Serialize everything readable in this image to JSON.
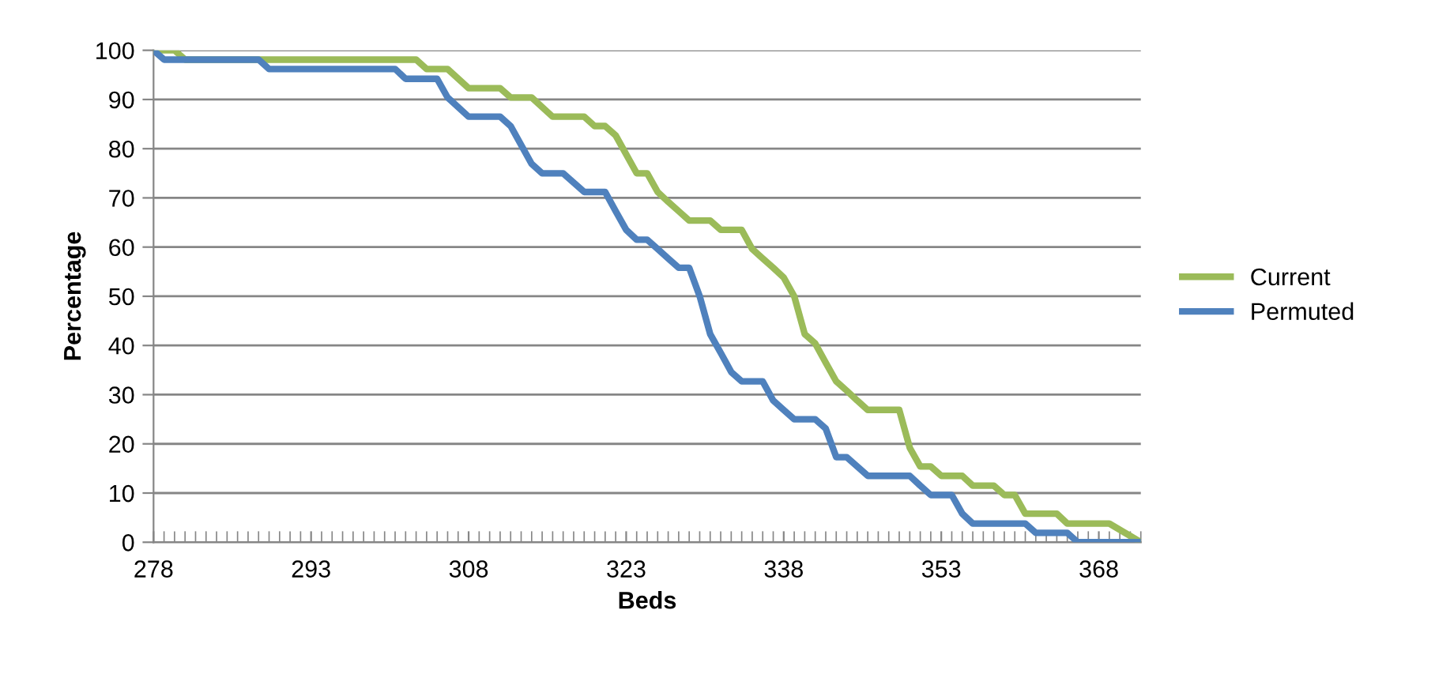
{
  "chart_data": {
    "type": "line",
    "xlabel": "Beds",
    "ylabel": "Percentage",
    "xlim": [
      278,
      372
    ],
    "xticks": [
      278,
      293,
      308,
      323,
      338,
      353,
      368
    ],
    "ylim": [
      0,
      100
    ],
    "yticks": [
      0,
      10,
      20,
      30,
      40,
      50,
      60,
      70,
      80,
      90,
      100
    ],
    "grid": "y",
    "legend": "right",
    "marker": "none",
    "line_style": "solid",
    "series": [
      {
        "name": "Current",
        "color": "#9bbb59",
        "x": [
          278,
          280,
          281,
          303,
          304,
          306,
          308,
          311,
          312,
          314,
          316,
          319,
          320,
          321,
          322,
          324,
          325,
          326,
          327,
          328,
          329,
          331,
          332,
          334,
          335,
          336,
          337,
          338,
          339,
          340,
          341,
          342,
          343,
          344,
          345,
          346,
          349,
          350,
          351,
          352,
          353,
          355,
          356,
          358,
          359,
          360,
          361,
          364,
          365,
          369,
          372
        ],
        "values": [
          100,
          100,
          98.1,
          98.1,
          96.2,
          96.2,
          92.3,
          92.3,
          90.4,
          90.4,
          86.5,
          86.5,
          84.6,
          84.6,
          82.7,
          75,
          75,
          71.2,
          69.2,
          67.3,
          65.4,
          65.4,
          63.5,
          63.5,
          59.6,
          57.7,
          55.8,
          53.8,
          50,
          42.3,
          40.4,
          36.5,
          32.7,
          30.8,
          28.8,
          26.9,
          26.9,
          19.2,
          15.4,
          15.4,
          13.5,
          13.5,
          11.5,
          11.5,
          9.6,
          9.6,
          5.8,
          5.8,
          3.8,
          3.8,
          0
        ]
      },
      {
        "name": "Permuted",
        "color": "#4f81bd",
        "x": [
          278,
          279,
          288,
          289,
          301,
          302,
          305,
          306,
          308,
          311,
          312,
          314,
          315,
          317,
          319,
          321,
          322,
          323,
          324,
          325,
          326,
          327,
          328,
          329,
          330,
          331,
          332,
          333,
          334,
          336,
          337,
          338,
          339,
          341,
          342,
          343,
          344,
          345,
          346,
          350,
          351,
          352,
          354,
          355,
          356,
          361,
          362,
          365,
          366,
          372
        ],
        "values": [
          100,
          98.1,
          98.1,
          96.2,
          96.2,
          94.2,
          94.2,
          90.4,
          86.5,
          86.5,
          84.6,
          76.9,
          75,
          75,
          71.2,
          71.2,
          67.3,
          63.5,
          61.5,
          61.5,
          59.6,
          57.7,
          55.8,
          55.8,
          50,
          42.3,
          38.5,
          34.6,
          32.7,
          32.7,
          28.8,
          26.9,
          25,
          25,
          23.1,
          17.3,
          17.3,
          15.4,
          13.5,
          13.5,
          11.5,
          9.6,
          9.6,
          5.8,
          3.8,
          3.8,
          1.9,
          1.9,
          0,
          0
        ]
      }
    ]
  }
}
